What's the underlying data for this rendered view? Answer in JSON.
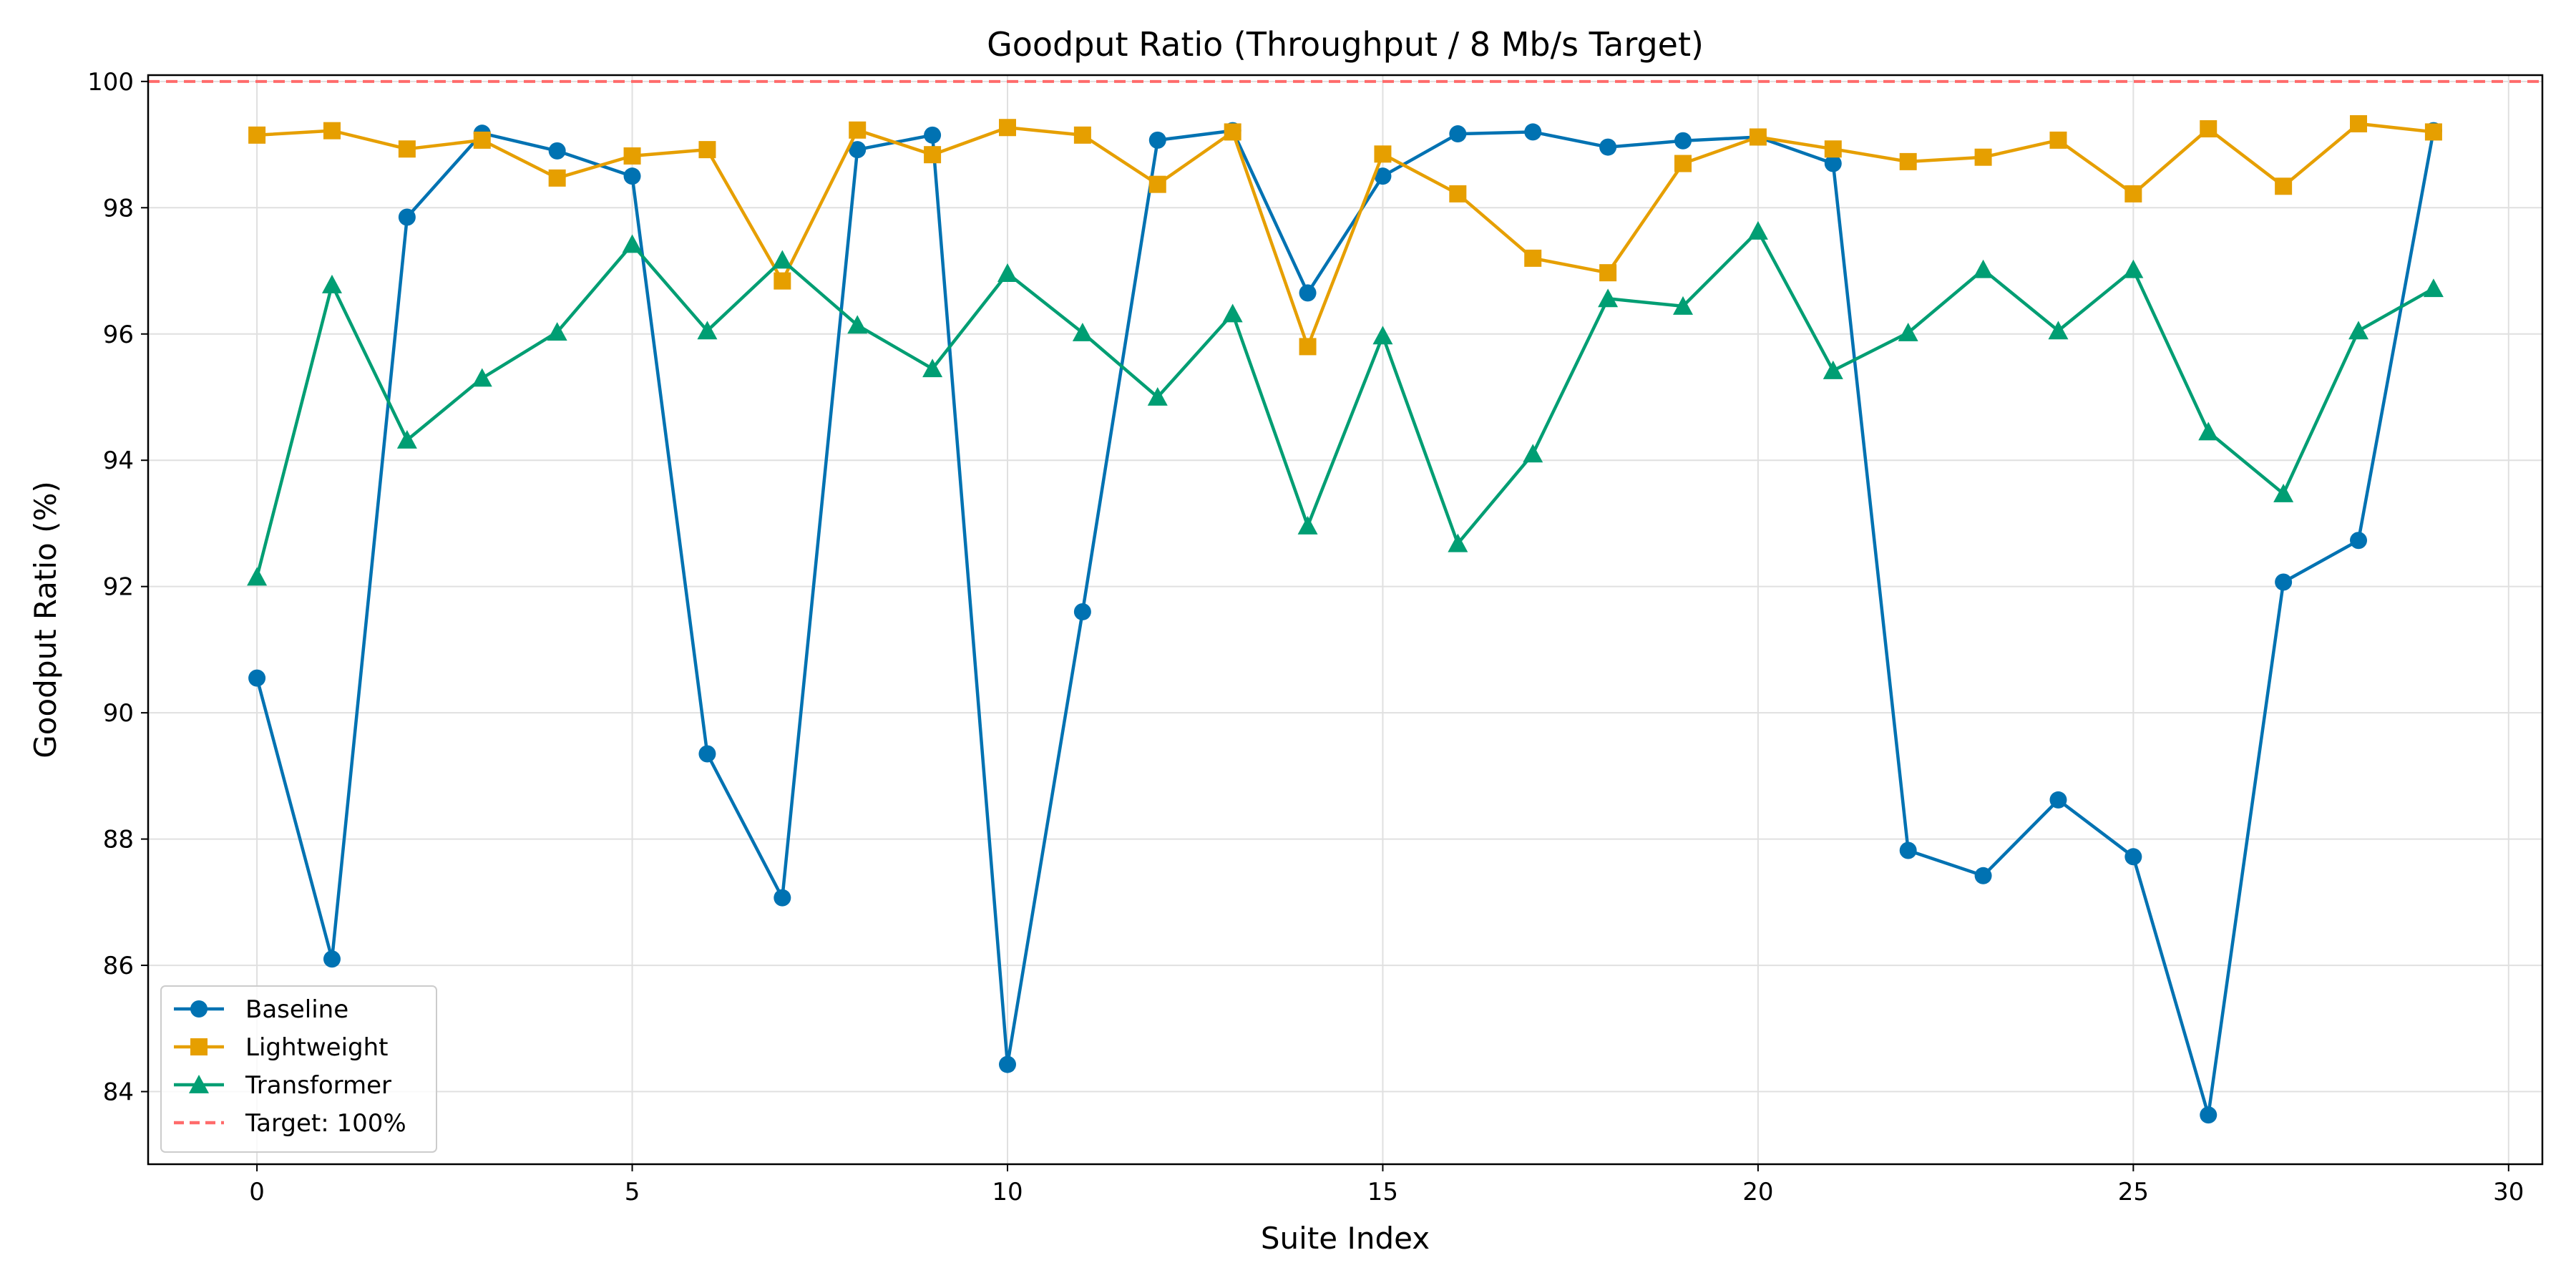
{
  "chart_data": {
    "type": "line",
    "title": "Goodput Ratio (Throughput / 8 Mb/s Target)",
    "xlabel": "Suite Index",
    "ylabel": "Goodput Ratio (%)",
    "xlim": [
      -1.45,
      30.45
    ],
    "ylim": [
      82.85,
      100.1
    ],
    "xticks": [
      0,
      5,
      10,
      15,
      20,
      25,
      30
    ],
    "yticks": [
      84,
      86,
      88,
      90,
      92,
      94,
      96,
      98,
      100
    ],
    "grid": true,
    "legend_position": "lower-left",
    "x": [
      0,
      1,
      2,
      3,
      4,
      5,
      6,
      7,
      8,
      9,
      10,
      11,
      12,
      13,
      14,
      15,
      16,
      17,
      18,
      19,
      20,
      21,
      22,
      23,
      24,
      25,
      26,
      27,
      28,
      29
    ],
    "series": [
      {
        "name": "Baseline",
        "color": "#0072b2",
        "marker": "circle",
        "values": [
          90.55,
          86.1,
          97.85,
          99.18,
          98.9,
          98.5,
          89.35,
          87.07,
          98.92,
          99.15,
          84.43,
          91.6,
          99.07,
          99.22,
          96.65,
          98.5,
          99.17,
          99.2,
          98.96,
          99.06,
          99.12,
          98.7,
          87.82,
          87.42,
          88.62,
          87.72,
          83.63,
          92.07,
          92.73,
          99.22
        ]
      },
      {
        "name": "Lightweight",
        "color": "#e69f00",
        "marker": "square",
        "values": [
          99.15,
          99.22,
          98.93,
          99.07,
          98.47,
          98.82,
          98.92,
          96.84,
          99.23,
          98.84,
          99.27,
          99.15,
          98.37,
          99.2,
          95.8,
          98.85,
          98.22,
          97.2,
          96.97,
          98.7,
          99.12,
          98.93,
          98.73,
          98.8,
          99.07,
          98.22,
          99.25,
          98.34,
          99.33,
          99.2
        ]
      },
      {
        "name": "Transformer",
        "color": "#009e73",
        "marker": "triangle",
        "values": [
          92.15,
          96.78,
          94.32,
          95.3,
          96.03,
          97.42,
          96.05,
          97.17,
          96.14,
          95.45,
          96.96,
          96.02,
          95.0,
          96.32,
          92.96,
          95.97,
          92.68,
          94.1,
          96.56,
          96.44,
          97.63,
          95.42,
          96.02,
          97.02,
          96.05,
          97.02,
          94.45,
          93.47,
          96.05,
          96.72
        ]
      }
    ],
    "reference_line": {
      "name": "Target: 100%",
      "value": 100,
      "color": "#ff6b6b",
      "style": "dashed"
    }
  }
}
